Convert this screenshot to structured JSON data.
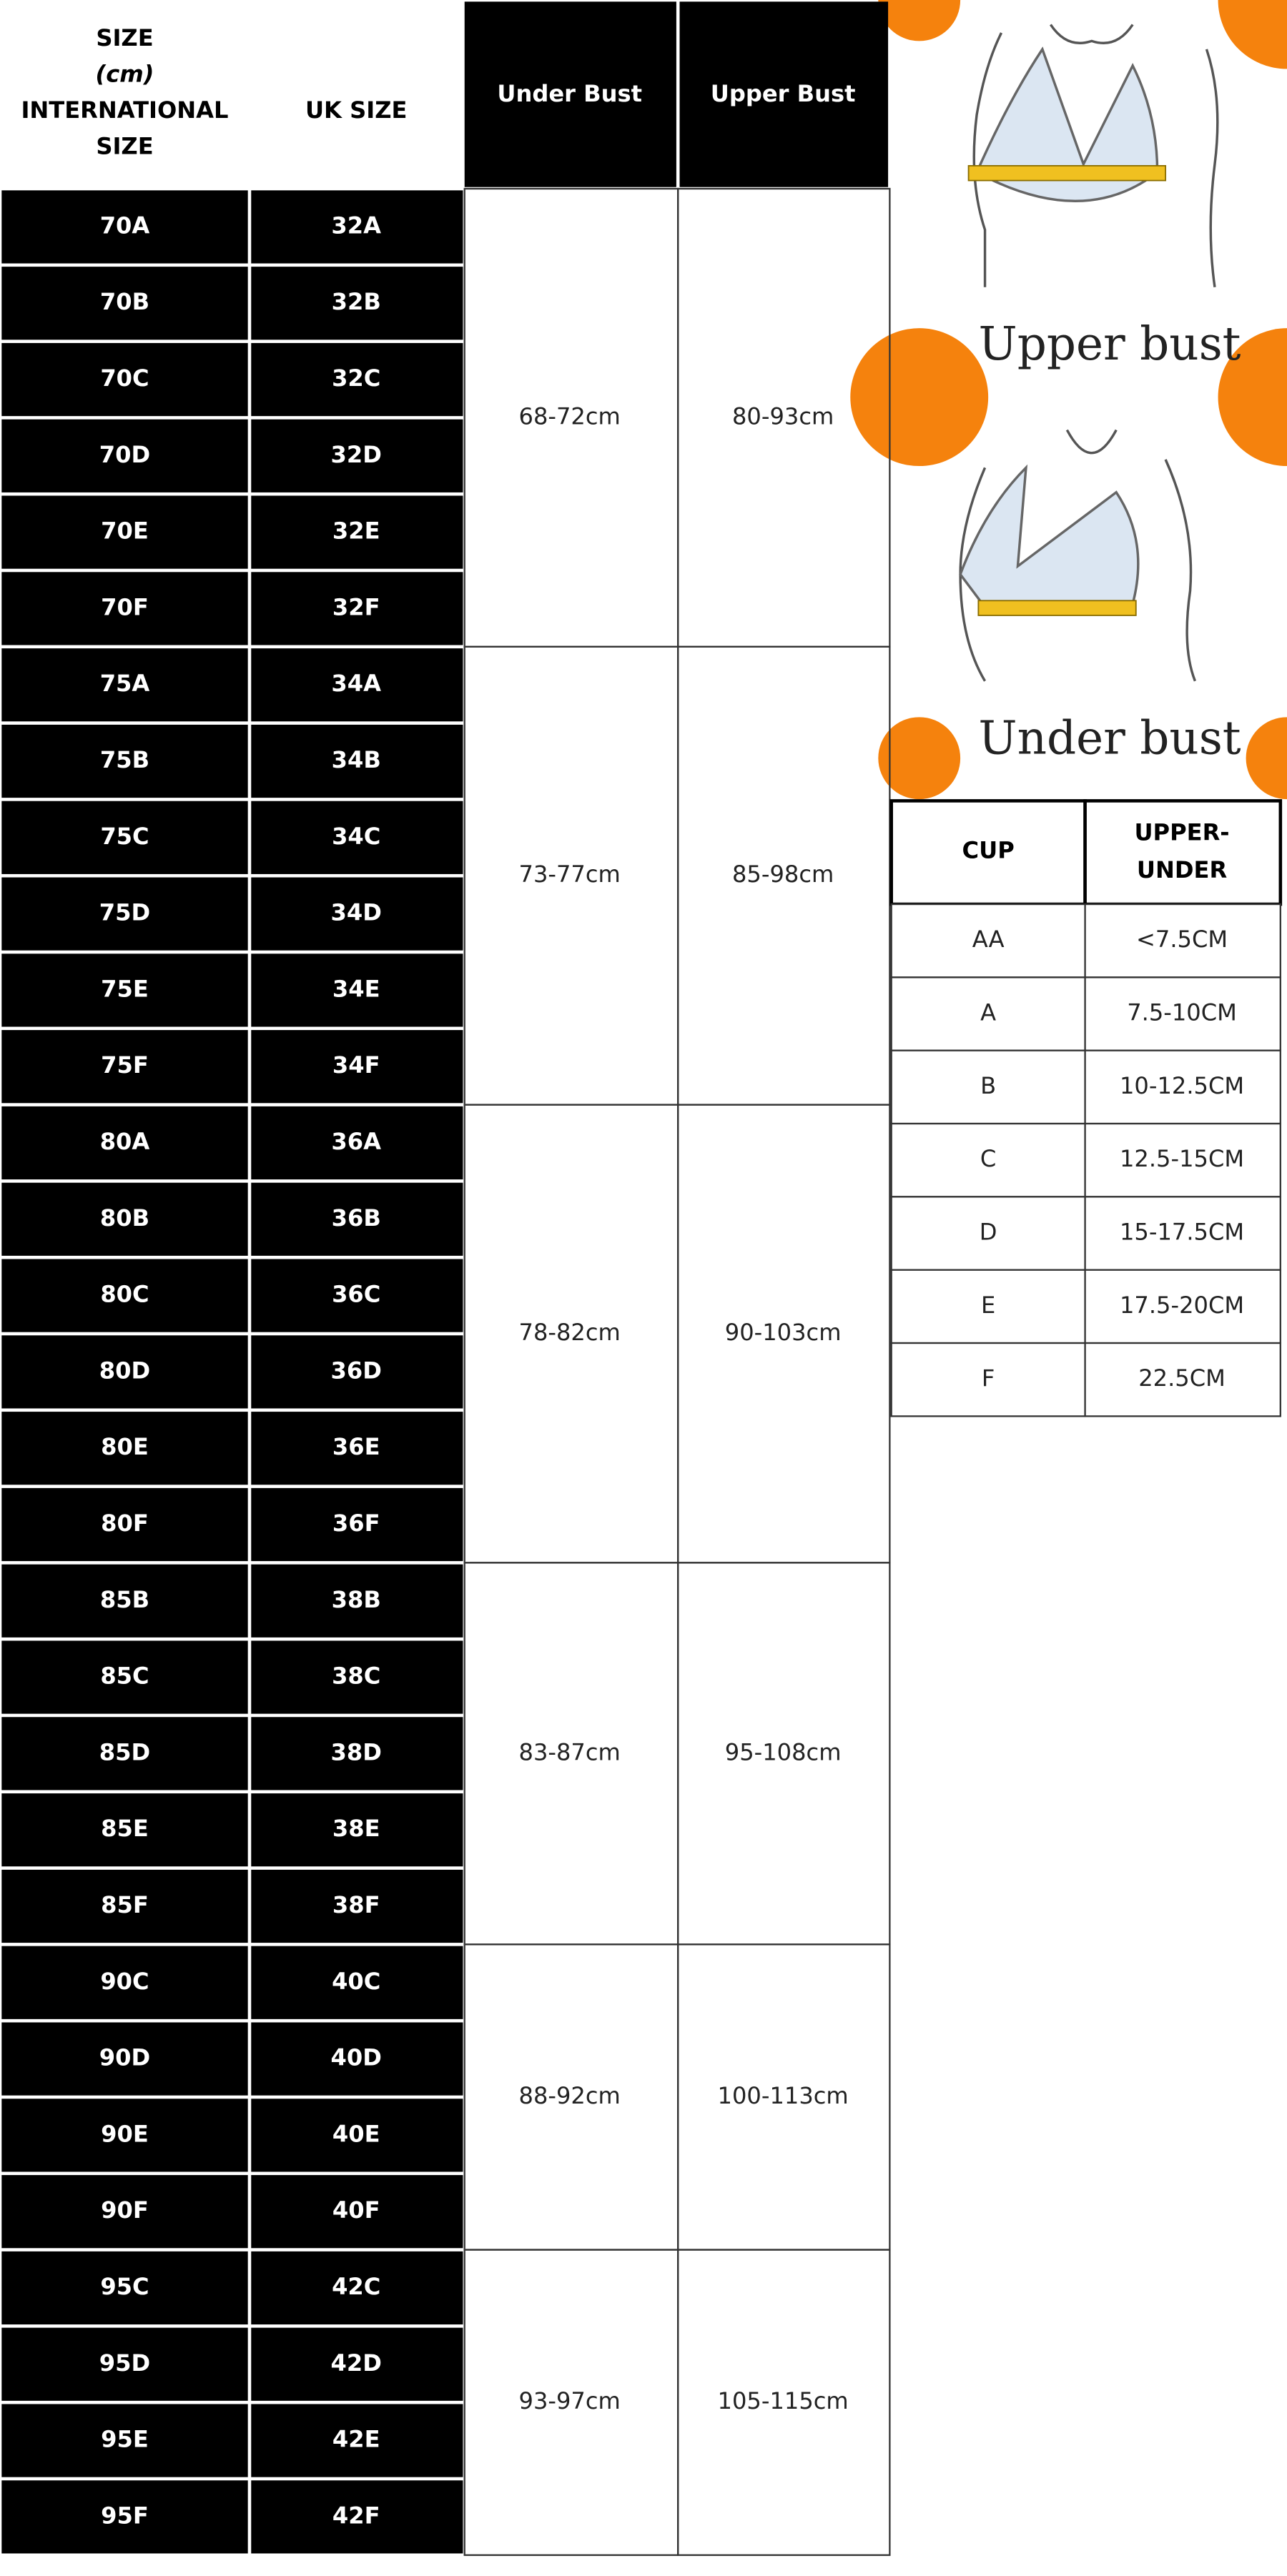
{
  "size_header": [
    "SIZE",
    "(cm)",
    "INTERNATIONAL",
    "SIZE"
  ],
  "uk_header": "UK SIZE",
  "under_header": "Under Bust",
  "upper_header": "Upper Bust",
  "groups": [
    {
      "under": "68-72cm",
      "upper": "80-93cm",
      "rows": [
        [
          "70A",
          "32A"
        ],
        [
          "70B",
          "32B"
        ],
        [
          "70C",
          "32C"
        ],
        [
          "70D",
          "32D"
        ],
        [
          "70E",
          "32E"
        ],
        [
          "70F",
          "32F"
        ]
      ]
    },
    {
      "under": "73-77cm",
      "upper": "85-98cm",
      "rows": [
        [
          "75A",
          "34A"
        ],
        [
          "75B",
          "34B"
        ],
        [
          "75C",
          "34C"
        ],
        [
          "75D",
          "34D"
        ],
        [
          "75E",
          "34E"
        ],
        [
          "75F",
          "34F"
        ]
      ]
    },
    {
      "under": "78-82cm",
      "upper": "90-103cm",
      "rows": [
        [
          "80A",
          "36A"
        ],
        [
          "80B",
          "36B"
        ],
        [
          "80C",
          "36C"
        ],
        [
          "80D",
          "36D"
        ],
        [
          "80E",
          "36E"
        ],
        [
          "80F",
          "36F"
        ]
      ]
    },
    {
      "under": "83-87cm",
      "upper": "95-108cm",
      "rows": [
        [
          "85B",
          "38B"
        ],
        [
          "85C",
          "38C"
        ],
        [
          "85D",
          "38D"
        ],
        [
          "85E",
          "38E"
        ],
        [
          "85F",
          "38F"
        ]
      ]
    },
    {
      "under": "88-92cm",
      "upper": "100-113cm",
      "rows": [
        [
          "90C",
          "40C"
        ],
        [
          "90D",
          "40D"
        ],
        [
          "90E",
          "40E"
        ],
        [
          "90F",
          "40F"
        ]
      ]
    },
    {
      "under": "93-97cm",
      "upper": "105-115cm",
      "rows": [
        [
          "95C",
          "42C"
        ],
        [
          "95D",
          "42D"
        ],
        [
          "95E",
          "42E"
        ],
        [
          "95F",
          "42F"
        ]
      ]
    }
  ],
  "illustrations": [
    "Upper bust",
    "Under bust"
  ],
  "cup_table": {
    "cup_header": "CUP",
    "diff_header": [
      "UPPER-",
      "UNDER"
    ],
    "rows": [
      [
        "AA",
        "<7.5CM"
      ],
      [
        "A",
        "7.5-10CM"
      ],
      [
        "B",
        "10-12.5CM"
      ],
      [
        "C",
        "12.5-15CM"
      ],
      [
        "D",
        "15-17.5CM"
      ],
      [
        "E",
        "17.5-20CM"
      ],
      [
        "F",
        "22.5CM"
      ]
    ]
  }
}
